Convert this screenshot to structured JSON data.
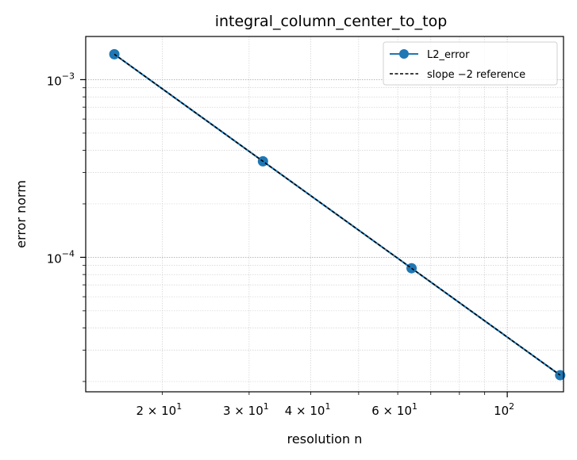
{
  "chart_data": {
    "type": "line",
    "title": "integral_column_center_to_top",
    "xlabel": "resolution n",
    "ylabel": "error norm",
    "xscale": "log",
    "yscale": "log",
    "xlim": [
      14,
      130
    ],
    "ylim": [
      1.75e-05,
      0.00175
    ],
    "grid": true,
    "legend_position": "top-right",
    "x_ticks": [
      {
        "value": 20,
        "base": "2 × 10",
        "exp": "1"
      },
      {
        "value": 30,
        "base": "3 × 10",
        "exp": "1"
      },
      {
        "value": 40,
        "base": "4 × 10",
        "exp": "1"
      },
      {
        "value": 60,
        "base": "6 × 10",
        "exp": "1"
      },
      {
        "value": 100,
        "base": "10",
        "exp": "2"
      }
    ],
    "y_ticks": [
      {
        "value": 0.001,
        "base": "10",
        "exp": "−3"
      },
      {
        "value": 0.0001,
        "base": "10",
        "exp": "−4"
      }
    ],
    "series": [
      {
        "name": "L2_error",
        "style": "solid-marker",
        "color": "#1f77b4",
        "x": [
          16,
          32,
          64,
          128
        ],
        "y": [
          0.00139,
          0.000347,
          8.68e-05,
          2.17e-05
        ]
      },
      {
        "name": "slope −2 reference",
        "style": "dashed",
        "color": "#000000",
        "x": [
          16,
          32,
          64,
          128
        ],
        "y": [
          0.00139,
          0.000347,
          8.68e-05,
          2.17e-05
        ]
      }
    ]
  }
}
